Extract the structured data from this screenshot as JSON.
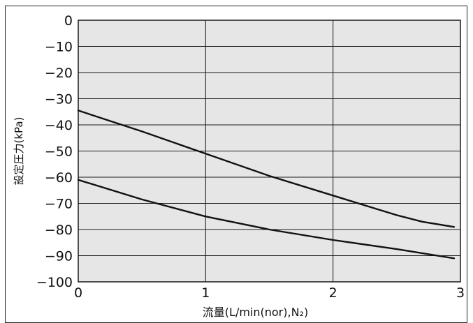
{
  "chart_data": {
    "type": "line",
    "xlabel": "流量(L/min(nor),N₂)",
    "ylabel": "設定圧力(kPa)",
    "xlim": [
      0,
      3
    ],
    "ylim": [
      -100,
      0
    ],
    "x_ticks": [
      "0",
      "1",
      "2",
      "3"
    ],
    "y_ticks": [
      "0",
      "−10",
      "−20",
      "−30",
      "−40",
      "−50",
      "−60",
      "−70",
      "−80",
      "−90",
      "−100"
    ],
    "x_tick_values": [
      0,
      1,
      2,
      3
    ],
    "y_tick_values": [
      0,
      -10,
      -20,
      -30,
      -40,
      -50,
      -60,
      -70,
      -80,
      -90,
      -100
    ],
    "grid": true,
    "series": [
      {
        "x": [
          0,
          0.5,
          1.0,
          1.5,
          2.0,
          2.5,
          2.7,
          2.95
        ],
        "y": [
          -34.5,
          -42.5,
          -51,
          -59.5,
          -67,
          -74.5,
          -77,
          -79
        ]
      },
      {
        "x": [
          0,
          0.5,
          1.0,
          1.5,
          2.0,
          2.5,
          2.95
        ],
        "y": [
          -61,
          -68.5,
          -75,
          -80,
          -84,
          -87.5,
          -91
        ]
      }
    ],
    "colors": {
      "plot_bg": "#e6e6e6",
      "grid": "#1a1a1a",
      "line": "#111111"
    }
  }
}
